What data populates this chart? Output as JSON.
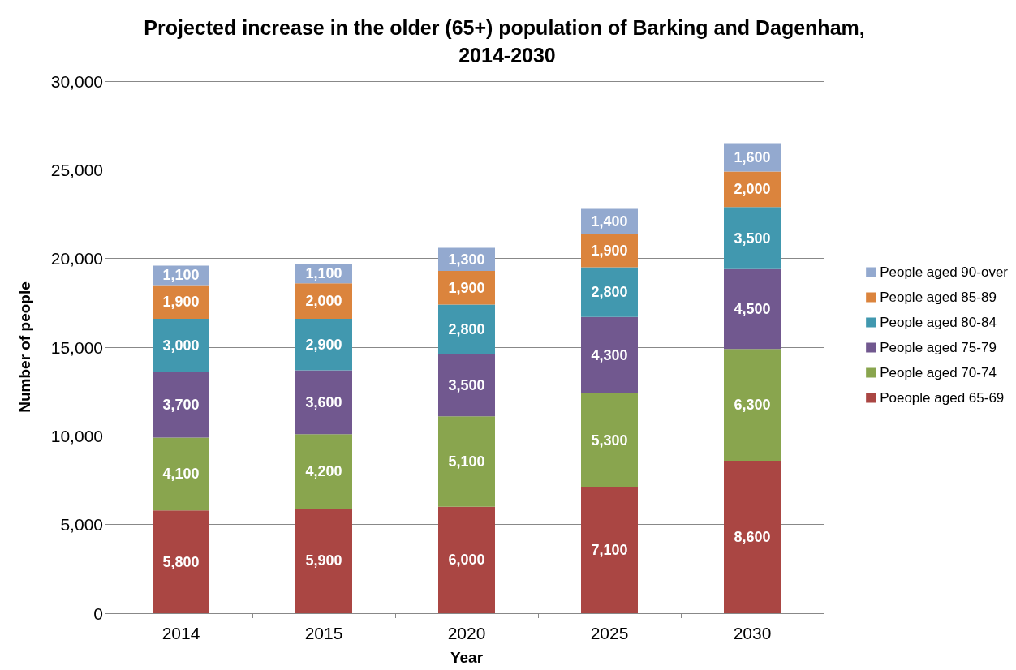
{
  "chart_data": {
    "type": "bar",
    "title": "Projected increase in the older (65+) population of Barking and Dagenham, 2014-2030",
    "xlabel": "Year",
    "ylabel": "Number of people",
    "categories": [
      "2014",
      "2015",
      "2020",
      "2025",
      "2030"
    ],
    "stacked": true,
    "grid": "y",
    "legend": "right",
    "ylim": [
      0,
      30000
    ],
    "yticks": [
      {
        "value": 0,
        "label": "0"
      },
      {
        "value": 5000,
        "label": "5,000"
      },
      {
        "value": 10000,
        "label": "10,000"
      },
      {
        "value": 15000,
        "label": "15,000"
      },
      {
        "value": 20000,
        "label": "20,000"
      },
      {
        "value": 25000,
        "label": "25,000"
      },
      {
        "value": 30000,
        "label": "30,000"
      }
    ],
    "series": [
      {
        "name": "Poeople aged 65-69",
        "color": "#aa4643",
        "values": [
          5800,
          5900,
          6000,
          7100,
          8600
        ],
        "value_labels": [
          "5,800",
          "5,900",
          "6,000",
          "7,100",
          "8,600"
        ]
      },
      {
        "name": "People aged 70-74",
        "color": "#89a54e",
        "values": [
          4100,
          4200,
          5100,
          5300,
          6300
        ],
        "value_labels": [
          "4,100",
          "4,200",
          "5,100",
          "5,300",
          "6,300"
        ]
      },
      {
        "name": "People aged 75-79",
        "color": "#71588f",
        "values": [
          3700,
          3600,
          3500,
          4300,
          4500
        ],
        "value_labels": [
          "3,700",
          "3,600",
          "3,500",
          "4,300",
          "4,500"
        ]
      },
      {
        "name": "People aged 80-84",
        "color": "#4198af",
        "values": [
          3000,
          2900,
          2800,
          2800,
          3500
        ],
        "value_labels": [
          "3,000",
          "2,900",
          "2,800",
          "2,800",
          "3,500"
        ]
      },
      {
        "name": "People aged 85-89",
        "color": "#db843d",
        "values": [
          1900,
          2000,
          1900,
          1900,
          2000
        ],
        "value_labels": [
          "1,900",
          "2,000",
          "1,900",
          "1,900",
          "2,000"
        ]
      },
      {
        "name": "People aged 90-over",
        "color": "#93a9cf",
        "values": [
          1100,
          1100,
          1300,
          1400,
          1600
        ],
        "value_labels": [
          "1,100",
          "1,100",
          "1,300",
          "1,400",
          "1,600"
        ]
      }
    ]
  }
}
